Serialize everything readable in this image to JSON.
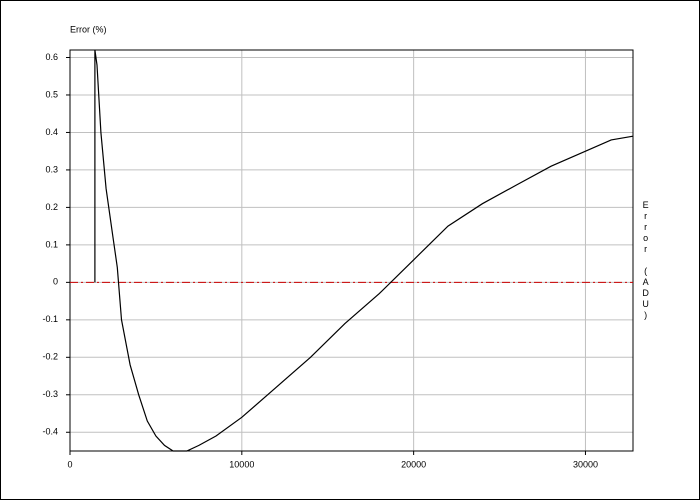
{
  "chart_data": {
    "type": "line",
    "y_label": "Error (%)",
    "y2_label": "Error (ADU)",
    "x": [
      1450,
      1450,
      1570,
      1800,
      2100,
      2500,
      2750,
      3000,
      3500,
      4000,
      4500,
      5000,
      5500,
      6000,
      6800,
      7500,
      8500,
      10000,
      12000,
      14000,
      16000,
      18000,
      20000,
      22000,
      24000,
      26000,
      28000,
      30000,
      31500,
      32767
    ],
    "values": [
      0,
      0.62,
      0.58,
      0.4,
      0.25,
      0.12,
      0.04,
      -0.1,
      -0.22,
      -0.3,
      -0.37,
      -0.41,
      -0.435,
      -0.45,
      -0.45,
      -0.435,
      -0.41,
      -0.36,
      -0.28,
      -0.2,
      -0.11,
      -0.03,
      0.06,
      0.15,
      0.21,
      0.26,
      0.31,
      0.35,
      0.38,
      0.39
    ],
    "color": "#000000",
    "hline": 0,
    "hline_color": "#cc0000",
    "xlim": [
      0,
      32767
    ],
    "xticks": [
      0,
      10000,
      20000,
      30000
    ],
    "ylim": [
      -0.45,
      0.62
    ],
    "yticks": [
      0.6,
      0.5,
      0.4,
      0.3,
      0.2,
      0.1,
      0,
      -0.1,
      -0.2,
      -0.3,
      -0.4
    ],
    "grid": true
  }
}
